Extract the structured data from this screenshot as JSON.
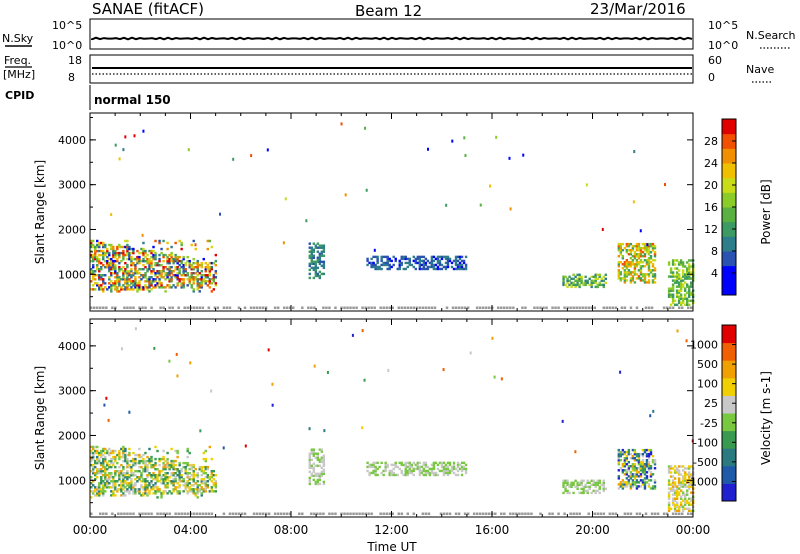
{
  "header": {
    "station": "SANAE (fitACF)",
    "beam": "Beam 12",
    "date": "23/Mar/2016"
  },
  "top_panels": {
    "nsky_label": "N.Sky",
    "nsearch_label": "N.Search",
    "nsky_ticks": [
      "10^5",
      "10^0"
    ],
    "freq_label_1": "Freq.",
    "freq_label_2": "[MHz]",
    "freq_ticks": [
      "18",
      "8"
    ],
    "nave_label": "Nave",
    "nave_ticks": [
      "60",
      "0"
    ],
    "cpid_label": "CPID",
    "cpid_value": "normal 150"
  },
  "colors": {
    "power": [
      "#0000ff",
      "#0000ff",
      "#2a52b0",
      "#2e7d8a",
      "#3c9a62",
      "#5ab040",
      "#8ccc28",
      "#c8dc18",
      "#f0c000",
      "#f09000",
      "#f05000",
      "#e00000"
    ],
    "velocity": [
      "#2020d0",
      "#1e5aa8",
      "#2a7a80",
      "#3a9a50",
      "#78c840",
      "#c8c8c8",
      "#f0d000",
      "#f0a000",
      "#f06000",
      "#e00000"
    ],
    "ground_scatter": "#999999"
  },
  "chart_data": [
    {
      "type": "heatmap",
      "name": "power",
      "xlabel": "",
      "ylabel": "Slant Range [km]",
      "xlim": [
        "00:00",
        "24:00"
      ],
      "ylim": [
        180,
        4600
      ],
      "x_ticks": [
        "00:00",
        "04:00",
        "08:00",
        "12:00",
        "16:00",
        "20:00",
        "00:00"
      ],
      "y_ticks": [
        1000,
        2000,
        3000,
        4000
      ],
      "colorbar": {
        "label": "Power [dB]",
        "ticks": [
          "28",
          "24",
          "20",
          "16",
          "12",
          "8",
          "4"
        ],
        "range": [
          0,
          30
        ]
      },
      "echo_regions": [
        {
          "t_start": 0.0,
          "t_end": 5.0,
          "range_start": 600,
          "range_end": 1750,
          "value_min": 4,
          "value_max": 30
        },
        {
          "t_start": 8.7,
          "t_end": 9.3,
          "range_start": 900,
          "range_end": 1700,
          "value_min": 6,
          "value_max": 12
        },
        {
          "t_start": 11.0,
          "t_end": 15.0,
          "range_start": 1100,
          "range_end": 1400,
          "value_min": 4,
          "value_max": 10
        },
        {
          "t_start": 18.8,
          "t_end": 20.5,
          "range_start": 700,
          "range_end": 1000,
          "value_min": 8,
          "value_max": 20
        },
        {
          "t_start": 21.0,
          "t_end": 22.5,
          "range_start": 800,
          "range_end": 1700,
          "value_min": 10,
          "value_max": 26
        },
        {
          "t_start": 23.0,
          "t_end": 24.0,
          "range_start": 300,
          "range_end": 1300,
          "value_min": 10,
          "value_max": 20
        }
      ]
    },
    {
      "type": "heatmap",
      "name": "velocity",
      "xlabel": "Time UT",
      "ylabel": "Slant Range [km]",
      "xlim": [
        "00:00",
        "24:00"
      ],
      "ylim": [
        180,
        4600
      ],
      "x_ticks": [
        "00:00",
        "04:00",
        "08:00",
        "12:00",
        "16:00",
        "20:00",
        "00:00"
      ],
      "y_ticks": [
        1000,
        2000,
        3000,
        4000
      ],
      "colorbar": {
        "label": "Velocity [m s-1]",
        "ticks": [
          "1000",
          "500",
          "100",
          "25",
          "-25",
          "-100",
          "-500",
          "-1000"
        ],
        "range": [
          -1000,
          1000
        ]
      },
      "echo_regions": [
        {
          "t_start": 0.0,
          "t_end": 5.0,
          "range_start": 600,
          "range_end": 1750,
          "value_min": -500,
          "value_max": 500
        },
        {
          "t_start": 8.7,
          "t_end": 9.3,
          "range_start": 900,
          "range_end": 1700,
          "value_min": -100,
          "value_max": 100
        },
        {
          "t_start": 11.0,
          "t_end": 15.0,
          "range_start": 1100,
          "range_end": 1400,
          "value_min": -25,
          "value_max": 25
        },
        {
          "t_start": 18.8,
          "t_end": 20.5,
          "range_start": 700,
          "range_end": 1000,
          "value_min": -100,
          "value_max": 100
        },
        {
          "t_start": 21.0,
          "t_end": 22.5,
          "range_start": 800,
          "range_end": 1700,
          "value_min": -1000,
          "value_max": 500
        },
        {
          "t_start": 23.0,
          "t_end": 24.0,
          "range_start": 300,
          "range_end": 1300,
          "value_min": -100,
          "value_max": 500
        }
      ]
    }
  ]
}
